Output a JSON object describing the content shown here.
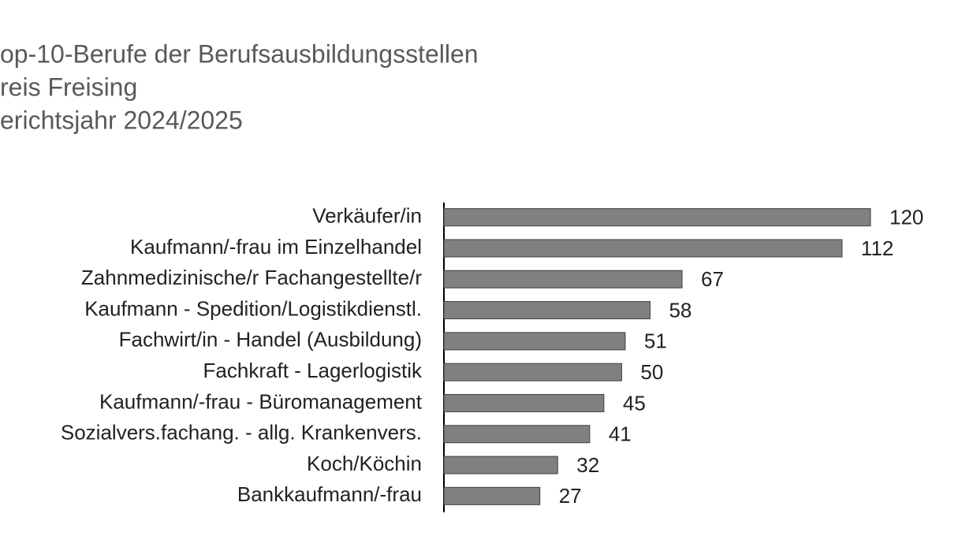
{
  "chart_data": {
    "type": "bar",
    "orientation": "horizontal",
    "title_lines": [
      "op-10-Berufe der Berufsausbildungsstellen",
      "reis Freising",
      "erichtsjahr 2024/2025"
    ],
    "categories": [
      "Verkäufer/in",
      "Kaufmann/-frau im Einzelhandel",
      "Zahnmedizinische/r Fachangestellte/r",
      "Kaufmann - Spedition/Logistikdienstl.",
      "Fachwirt/in - Handel (Ausbildung)",
      "Fachkraft - Lagerlogistik",
      "Kaufmann/-frau - Büromanagement",
      "Sozialvers.fachang. - allg. Krankenvers.",
      "Koch/Köchin",
      "Bankkaufmann/-frau"
    ],
    "values": [
      120,
      112,
      67,
      58,
      51,
      50,
      45,
      41,
      32,
      27
    ],
    "color": "#808080"
  }
}
